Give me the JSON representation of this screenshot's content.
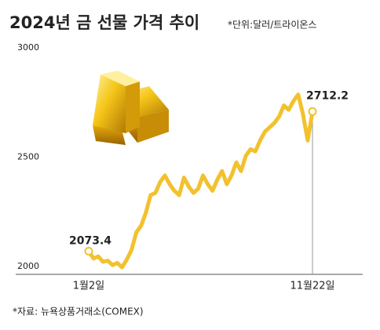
{
  "chart_data": {
    "type": "line",
    "title": "2024년 금 선물 가격 추이",
    "subtitle": "*단위:달러/트라이온스",
    "source": "*자료: 뉴욕상품거래소(COMEX)",
    "categories": [
      "1월2일",
      null,
      null,
      null,
      null,
      null,
      null,
      null,
      null,
      null,
      null,
      null,
      null,
      null,
      null,
      null,
      null,
      null,
      null,
      null,
      null,
      null,
      null,
      null,
      null,
      null,
      null,
      null,
      null,
      null,
      null,
      null,
      null,
      null,
      null,
      null,
      null,
      null,
      null,
      null,
      null,
      null,
      null,
      null,
      null,
      null,
      null,
      "11월22일"
    ],
    "values": [
      2073.4,
      2040,
      2050,
      2025,
      2030,
      2010,
      2020,
      2000,
      2035,
      2080,
      2160,
      2190,
      2250,
      2330,
      2340,
      2390,
      2420,
      2380,
      2350,
      2330,
      2410,
      2370,
      2340,
      2360,
      2420,
      2380,
      2350,
      2400,
      2440,
      2380,
      2420,
      2480,
      2440,
      2510,
      2540,
      2530,
      2580,
      2620,
      2640,
      2660,
      2690,
      2740,
      2720,
      2760,
      2790,
      2700,
      2580,
      2712.2
    ],
    "color": "#f2c12e",
    "ylim": [
      2000,
      3000
    ],
    "yticks": [
      2000,
      2500,
      3000
    ],
    "grid": false
  }
}
